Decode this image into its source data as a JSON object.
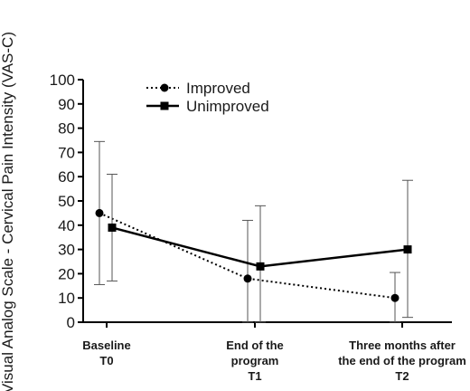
{
  "chart_data": {
    "type": "line",
    "ylabel": "Visual Analog Scale -  Cervical Pain Intensity (VAS-C)",
    "xlabel": "",
    "ylim": [
      0,
      100
    ],
    "yticks": [
      0,
      10,
      20,
      30,
      40,
      50,
      60,
      70,
      80,
      90,
      100
    ],
    "categories": [
      {
        "lines": [
          "Baseline",
          "T0"
        ]
      },
      {
        "lines": [
          "End of the",
          "program",
          "T1"
        ]
      },
      {
        "lines": [
          "Three months after",
          "the end of the program",
          "T2"
        ]
      }
    ],
    "legend_position": "top-left",
    "series": [
      {
        "name": "Improved",
        "line_style": "dotted",
        "marker": "circle",
        "color": "#000000",
        "values": [
          45,
          18,
          10
        ],
        "error_low": [
          15.5,
          0,
          0
        ],
        "error_high": [
          74.5,
          42,
          20.5
        ]
      },
      {
        "name": "Unimproved",
        "line_style": "solid",
        "marker": "square",
        "color": "#000000",
        "values": [
          39,
          23,
          30
        ],
        "error_low": [
          17,
          0,
          2
        ],
        "error_high": [
          61,
          48,
          58.5
        ]
      }
    ]
  }
}
